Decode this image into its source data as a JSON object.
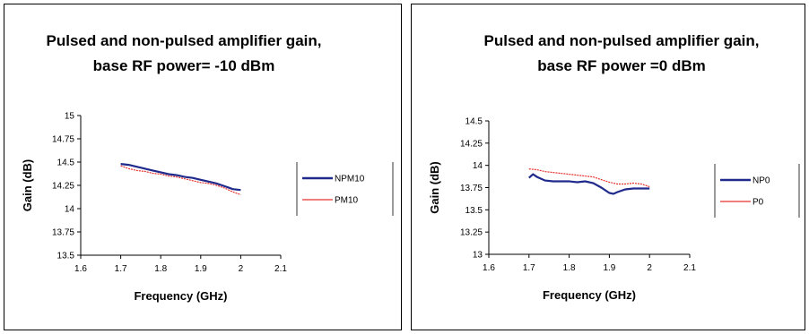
{
  "chart_data": [
    {
      "type": "line",
      "title": "Pulsed and non-pulsed amplifier gain,",
      "subtitle": "base RF power= -10 dBm",
      "xlabel": "Frequency (GHz)",
      "ylabel": "Gain (dB)",
      "xlim": [
        1.6,
        2.1
      ],
      "ylim": [
        13.5,
        15
      ],
      "xticks": [
        "1.6",
        "1.7",
        "1.8",
        "1.9",
        "2",
        "2.1"
      ],
      "yticks": [
        "13.5",
        "13.75",
        "14",
        "14.25",
        "14.5",
        "14.75",
        "15"
      ],
      "grid": false,
      "legend": "right",
      "series": [
        {
          "name": "NPM10",
          "color": "#1f2a8c",
          "x": [
            1.7,
            1.72,
            1.74,
            1.76,
            1.78,
            1.8,
            1.82,
            1.84,
            1.86,
            1.88,
            1.9,
            1.92,
            1.94,
            1.96,
            1.98,
            2.0
          ],
          "y": [
            14.48,
            14.47,
            14.45,
            14.43,
            14.41,
            14.39,
            14.37,
            14.36,
            14.34,
            14.33,
            14.31,
            14.29,
            14.27,
            14.24,
            14.21,
            14.2
          ]
        },
        {
          "name": "PM10",
          "color": "#e8302a",
          "x": [
            1.7,
            1.72,
            1.74,
            1.76,
            1.78,
            1.8,
            1.82,
            1.84,
            1.86,
            1.88,
            1.9,
            1.92,
            1.94,
            1.96,
            1.98,
            2.0
          ],
          "y": [
            14.46,
            14.43,
            14.41,
            14.4,
            14.38,
            14.37,
            14.35,
            14.34,
            14.32,
            14.3,
            14.28,
            14.27,
            14.25,
            14.22,
            14.18,
            14.15
          ]
        }
      ]
    },
    {
      "type": "line",
      "title": "Pulsed and non-pulsed amplifier gain,",
      "subtitle": "base RF power =0 dBm",
      "xlabel": "Frequency (GHz)",
      "ylabel": "Gain (dB)",
      "xlim": [
        1.6,
        2.1
      ],
      "ylim": [
        13,
        14.5
      ],
      "xticks": [
        "1.6",
        "1.7",
        "1.8",
        "1.9",
        "2",
        "2.1"
      ],
      "yticks": [
        "13",
        "13.25",
        "13.5",
        "13.75",
        "14",
        "14.25",
        "14.5"
      ],
      "grid": false,
      "legend": "right",
      "series": [
        {
          "name": "NP0",
          "color": "#1f2a8c",
          "x": [
            1.7,
            1.71,
            1.72,
            1.74,
            1.76,
            1.78,
            1.8,
            1.82,
            1.84,
            1.86,
            1.88,
            1.9,
            1.91,
            1.92,
            1.94,
            1.96,
            1.98,
            2.0
          ],
          "y": [
            13.86,
            13.9,
            13.87,
            13.83,
            13.82,
            13.82,
            13.82,
            13.81,
            13.82,
            13.8,
            13.75,
            13.69,
            13.68,
            13.7,
            13.73,
            13.74,
            13.74,
            13.74
          ]
        },
        {
          "name": "P0",
          "color": "#e8302a",
          "x": [
            1.7,
            1.72,
            1.74,
            1.76,
            1.78,
            1.8,
            1.82,
            1.84,
            1.86,
            1.88,
            1.9,
            1.92,
            1.94,
            1.96,
            1.98,
            2.0
          ],
          "y": [
            13.96,
            13.95,
            13.93,
            13.92,
            13.91,
            13.9,
            13.89,
            13.88,
            13.87,
            13.84,
            13.81,
            13.79,
            13.79,
            13.8,
            13.79,
            13.76
          ]
        }
      ]
    }
  ]
}
